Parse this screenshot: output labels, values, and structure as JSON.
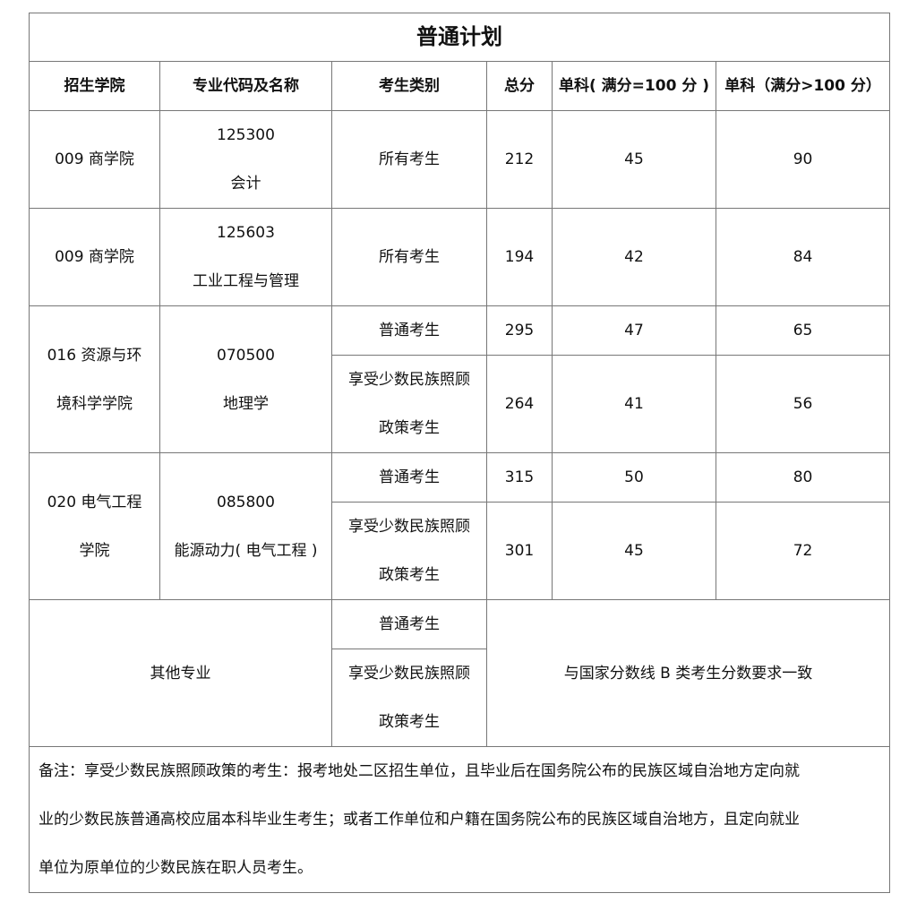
{
  "title": "普通计划",
  "headers": [
    "招生学院",
    "专业代码及名称",
    "考生类别",
    "总分",
    "单科( 满分=100 分 )",
    "单科（满分>100 分）"
  ],
  "rows": [
    {
      "college": "009 商学院",
      "code": "125300",
      "major": "会计",
      "category": "所有考生",
      "total": "212",
      "s100": "45",
      "sover": "90"
    },
    {
      "college": "009 商学院",
      "code": "125603",
      "major": "工业工程与管理",
      "category": "所有考生",
      "total": "194",
      "s100": "42",
      "sover": "84"
    }
  ],
  "groups": [
    {
      "college_l1": "016 资源与环",
      "college_l2": "境科学学院",
      "code": "070500",
      "major": "地理学",
      "sub": [
        {
          "cat_l1": "普通考生",
          "cat_l2": "",
          "total": "295",
          "s100": "47",
          "sover": "65"
        },
        {
          "cat_l1": "享受少数民族照顾",
          "cat_l2": "政策考生",
          "total": "264",
          "s100": "41",
          "sover": "56"
        }
      ]
    },
    {
      "college_l1": "020 电气工程",
      "college_l2": "学院",
      "code": "085800",
      "major": "能源动力( 电气工程 )",
      "sub": [
        {
          "cat_l1": "普通考生",
          "cat_l2": "",
          "total": "315",
          "s100": "50",
          "sover": "80"
        },
        {
          "cat_l1": "享受少数民族照顾",
          "cat_l2": "政策考生",
          "total": "301",
          "s100": "45",
          "sover": "72"
        }
      ]
    }
  ],
  "other": {
    "label": "其他专业",
    "cat1": "普通考生",
    "cat2_l1": "享受少数民族照顾",
    "cat2_l2": "政策考生",
    "requirement": "与国家分数线 B 类考生分数要求一致"
  },
  "note": {
    "line1": "备注：享受少数民族照顾政策的考生：报考地处二区招生单位，且毕业后在国务院公布的民族区域自治地方定向就",
    "line2": "业的少数民族普通高校应届本科毕业生考生；或者工作单位和户籍在国务院公布的民族区域自治地方，且定向就业",
    "line3": "单位为原单位的少数民族在职人员考生。"
  }
}
